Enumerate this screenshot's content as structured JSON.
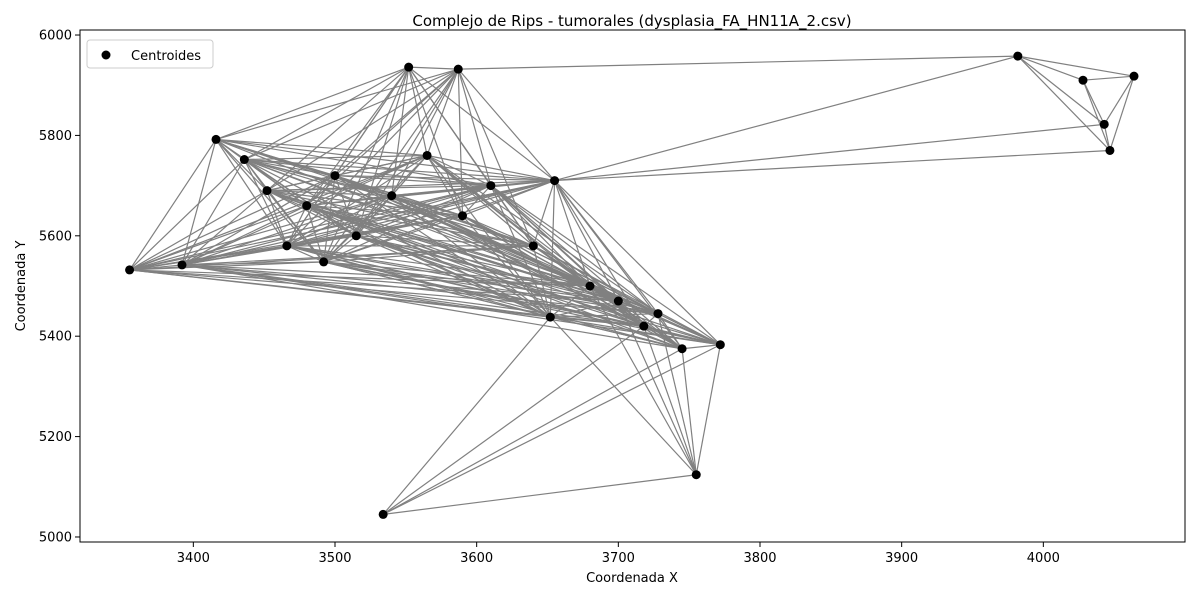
{
  "chart_data": {
    "type": "scatter",
    "title": "Complejo de Rips - tumorales (dysplasia_FA_HN11A_2.csv)",
    "xlabel": "Coordenada X",
    "ylabel": "Coordenada Y",
    "xlim": [
      3320,
      4100
    ],
    "ylim": [
      4990,
      6010
    ],
    "xticks": [
      3400,
      3500,
      3600,
      3700,
      3800,
      3900,
      4000
    ],
    "yticks": [
      5000,
      5200,
      5400,
      5600,
      5800,
      6000
    ],
    "grid": false,
    "legend": {
      "placement": "top-left",
      "entries": [
        "Centroides"
      ]
    },
    "colors": {
      "points": "#000000",
      "edges": "#808080"
    },
    "series": [
      {
        "name": "Centroides",
        "points": [
          [
            3355,
            5532
          ],
          [
            3392,
            5542
          ],
          [
            3416,
            5792
          ],
          [
            3436,
            5752
          ],
          [
            3452,
            5690
          ],
          [
            3466,
            5580
          ],
          [
            3480,
            5660
          ],
          [
            3492,
            5548
          ],
          [
            3500,
            5720
          ],
          [
            3515,
            5600
          ],
          [
            3534,
            5045
          ],
          [
            3540,
            5680
          ],
          [
            3552,
            5936
          ],
          [
            3565,
            5760
          ],
          [
            3587,
            5932
          ],
          [
            3590,
            5640
          ],
          [
            3610,
            5700
          ],
          [
            3640,
            5580
          ],
          [
            3652,
            5438
          ],
          [
            3655,
            5710
          ],
          [
            3680,
            5500
          ],
          [
            3700,
            5470
          ],
          [
            3718,
            5420
          ],
          [
            3728,
            5445
          ],
          [
            3745,
            5375
          ],
          [
            3755,
            5124
          ],
          [
            3772,
            5383
          ],
          [
            3982,
            5958
          ],
          [
            4028,
            5910
          ],
          [
            4043,
            5822
          ],
          [
            4047,
            5770
          ],
          [
            4064,
            5918
          ]
        ]
      }
    ]
  }
}
